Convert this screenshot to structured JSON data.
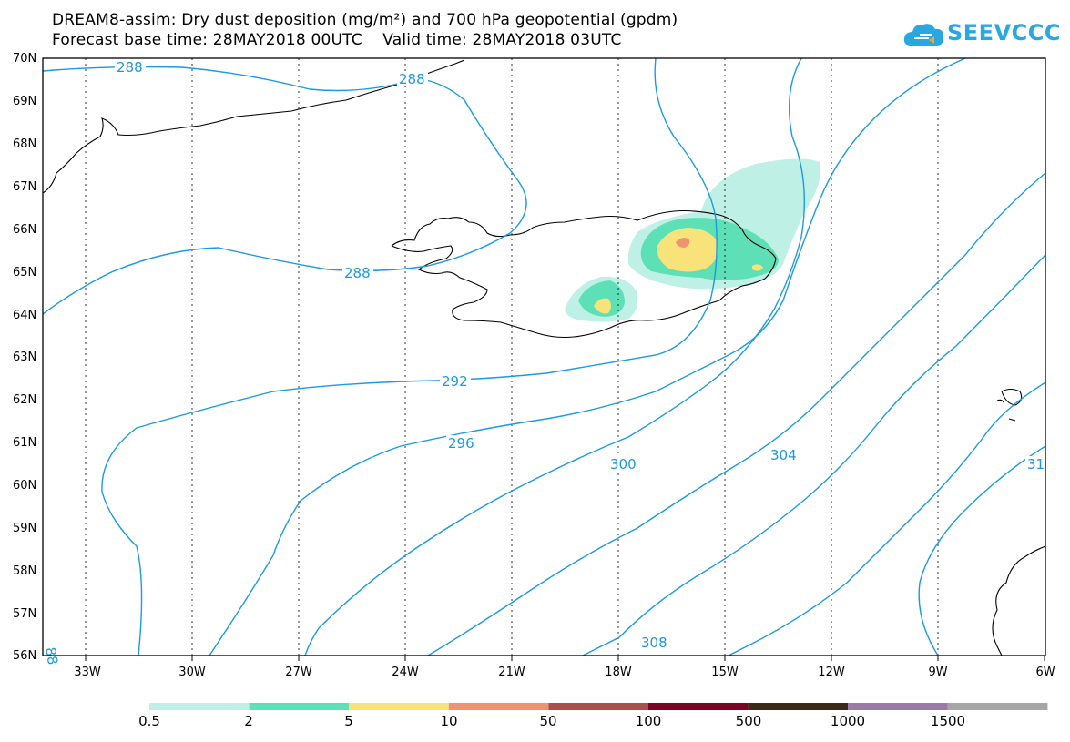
{
  "title_line1": "DREAM8-assim: Dry dust deposition (mg/m²) and 700 hPa geopotential (gpdm)",
  "title_line2": "Forecast base time: 28MAY2018 00UTC    Valid time: 28MAY2018 03UTC",
  "logo": {
    "text": "SEEVCCC",
    "icon": "cloud-icon"
  },
  "map": {
    "lat_labels": [
      "70N",
      "69N",
      "68N",
      "67N",
      "66N",
      "65N",
      "64N",
      "63N",
      "62N",
      "61N",
      "60N",
      "59N",
      "58N",
      "57N",
      "56N"
    ],
    "lon_labels": [
      "33W",
      "30W",
      "27W",
      "24W",
      "21W",
      "18W",
      "15W",
      "12W",
      "9W",
      "6W"
    ],
    "contour_labels": [
      {
        "text": "288"
      },
      {
        "text": "288"
      },
      {
        "text": "288"
      },
      {
        "text": "292"
      },
      {
        "text": "296"
      },
      {
        "text": "300"
      },
      {
        "text": "304"
      },
      {
        "text": "308"
      },
      {
        "text": "31"
      },
      {
        "text": "88"
      }
    ],
    "contour_color": "#1a9ae0"
  },
  "legend": {
    "labels": [
      "0.5",
      "2",
      "5",
      "10",
      "50",
      "100",
      "500",
      "1000",
      "1500"
    ],
    "colors": [
      "#bff0e6",
      "#5ee0b7",
      "#f7e37a",
      "#ee9470",
      "#a9504c",
      "#7a0626",
      "#3b2a1a",
      "#9a7aa6",
      "#a6a6a6"
    ]
  }
}
